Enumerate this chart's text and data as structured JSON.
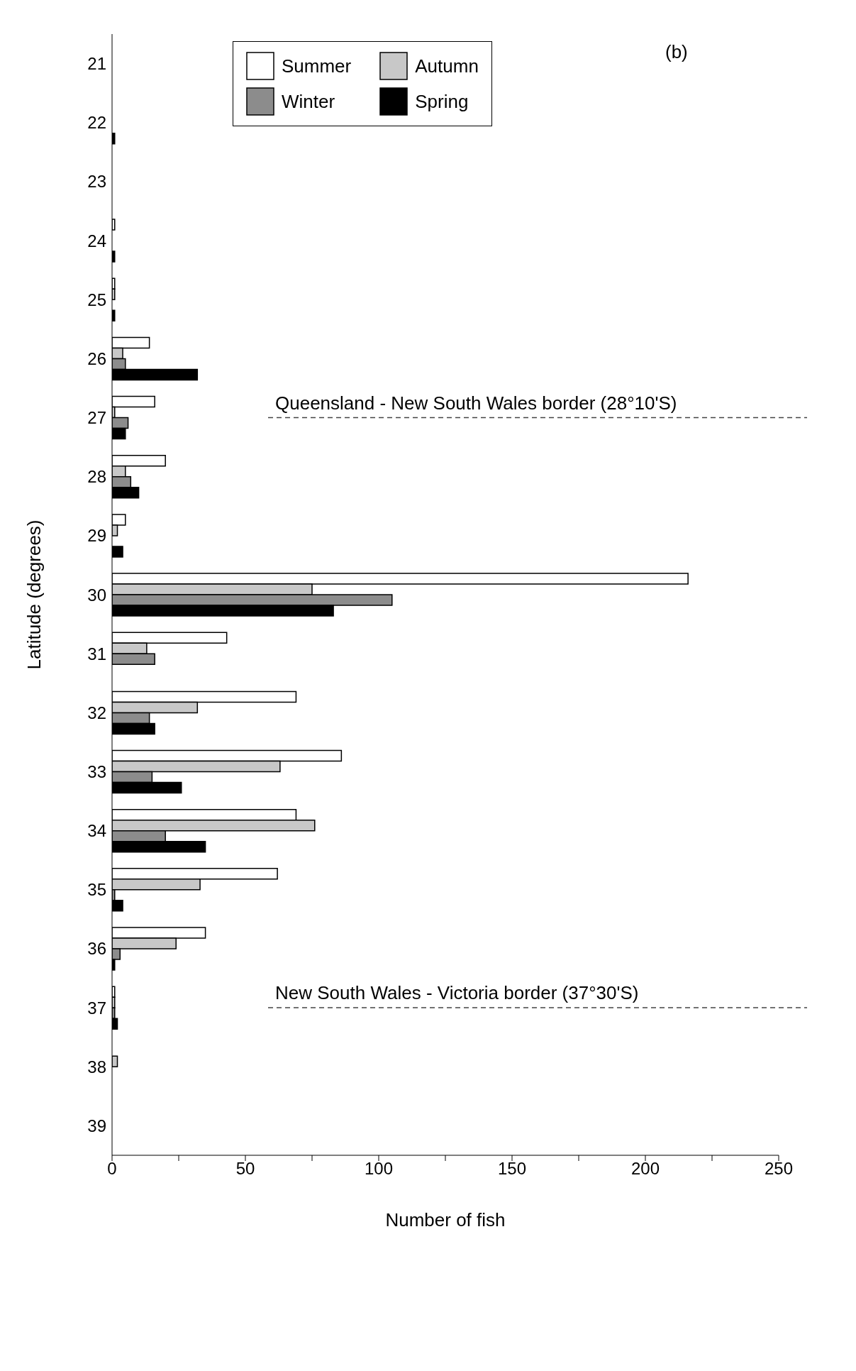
{
  "chart_data": {
    "type": "bar",
    "orientation": "horizontal",
    "xlabel": "Number of fish",
    "ylabel": "Latitude (degrees)",
    "categories": [
      "21",
      "22",
      "23",
      "24",
      "25",
      "26",
      "27",
      "28",
      "29",
      "30",
      "31",
      "32",
      "33",
      "34",
      "35",
      "36",
      "37",
      "38",
      "39"
    ],
    "series": [
      {
        "name": "Summer",
        "color": "#ffffff",
        "values": [
          null,
          null,
          null,
          1,
          1,
          14,
          16,
          20,
          5,
          216,
          43,
          69,
          86,
          69,
          62,
          35,
          1,
          null,
          null
        ]
      },
      {
        "name": "Autumn",
        "color": "#c8c8c8",
        "values": [
          null,
          null,
          null,
          null,
          1,
          4,
          1,
          5,
          2,
          75,
          13,
          32,
          63,
          76,
          33,
          24,
          1,
          2,
          null
        ]
      },
      {
        "name": "Winter",
        "color": "#8c8c8c",
        "values": [
          null,
          null,
          null,
          null,
          null,
          5,
          6,
          7,
          null,
          105,
          16,
          14,
          15,
          20,
          1,
          3,
          1,
          null,
          null
        ]
      },
      {
        "name": "Spring",
        "color": "#000000",
        "values": [
          null,
          1,
          null,
          1,
          1,
          32,
          5,
          10,
          4,
          83,
          null,
          16,
          26,
          35,
          4,
          1,
          2,
          null,
          null
        ]
      }
    ],
    "xlim": [
      0,
      250
    ],
    "xticks": [
      0,
      {
        "value": 25,
        "label": null
      },
      50,
      {
        "value": 75,
        "label": null
      },
      100,
      {
        "value": 125,
        "label": null
      },
      150,
      {
        "value": 175,
        "label": null
      },
      200,
      {
        "value": 225,
        "label": null
      },
      250
    ],
    "ref_lines": [
      {
        "axis": "y",
        "value": "27",
        "label": "Queensland - New South Wales border (28°10'S)",
        "line_style": "dashed"
      },
      {
        "axis": "y",
        "value": "37",
        "label": "New South Wales  - Victoria border (37°30'S)",
        "line_style": "dashed"
      }
    ],
    "annotations": [
      "(b)"
    ],
    "legend": "top",
    "grid": false
  }
}
